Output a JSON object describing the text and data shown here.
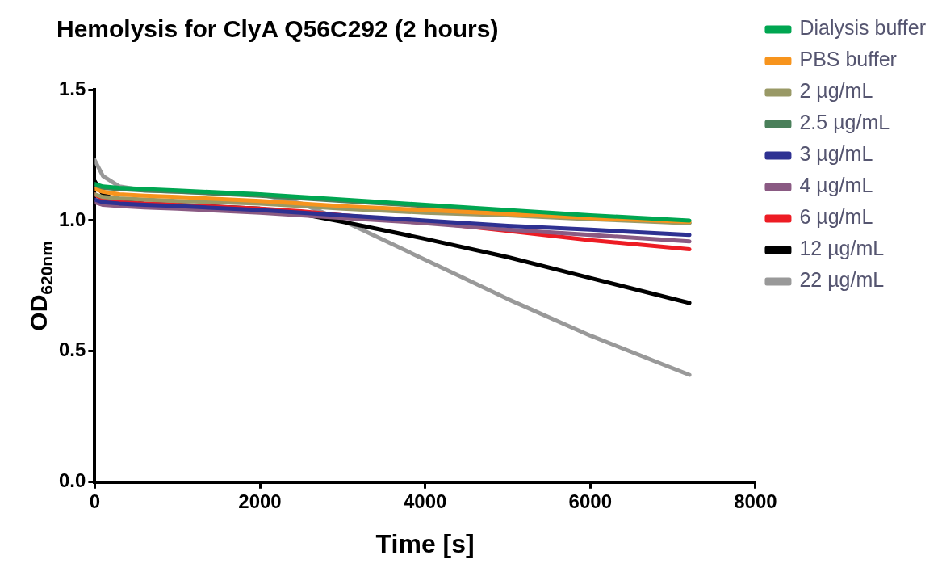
{
  "chart_data": {
    "type": "line",
    "title": "Hemolysis for ClyA Q56C292 (2 hours)",
    "xlabel": "Time [s]",
    "ylabel": "OD$_{620nm}$",
    "xlim": [
      0,
      8000
    ],
    "xticks": [
      0,
      2000,
      4000,
      6000,
      8000
    ],
    "ylim": [
      0,
      1.5
    ],
    "yticks": [
      {
        "value": 0,
        "label": "0.0"
      },
      {
        "value": 0.5,
        "label": "0.5"
      },
      {
        "value": 1,
        "label": "1.0"
      },
      {
        "value": 1.5,
        "label": "1.5"
      }
    ],
    "grid": false,
    "legend": "right",
    "marker": "none",
    "line_style": "solid",
    "x": [
      0,
      100,
      300,
      600,
      1000,
      2000,
      2500,
      3000,
      4000,
      5000,
      6000,
      7200
    ],
    "series": [
      {
        "name": "Dialysis buffer",
        "color": "#00a651",
        "values": [
          1.14,
          1.13,
          1.125,
          1.12,
          1.115,
          1.1,
          1.09,
          1.08,
          1.06,
          1.04,
          1.02,
          1.0
        ]
      },
      {
        "name": "PBS buffer",
        "color": "#f7941d",
        "values": [
          1.12,
          1.11,
          1.1,
          1.095,
          1.09,
          1.075,
          1.065,
          1.055,
          1.04,
          1.025,
          1.01,
          0.995
        ]
      },
      {
        "name": "2 µg/mL",
        "color": "#999966",
        "values": [
          1.1,
          1.09,
          1.085,
          1.08,
          1.075,
          1.065,
          1.055,
          1.045,
          1.03,
          1.02,
          1.005,
          0.99
        ]
      },
      {
        "name": "2.5 µg/mL",
        "color": "#4a7f5a",
        "values": [
          1.13,
          1.125,
          1.12,
          1.115,
          1.11,
          1.095,
          1.085,
          1.075,
          1.055,
          1.035,
          1.015,
          0.99
        ]
      },
      {
        "name": "3 µg/mL",
        "color": "#2e3192",
        "values": [
          1.08,
          1.07,
          1.065,
          1.06,
          1.055,
          1.04,
          1.03,
          1.02,
          1.0,
          0.98,
          0.965,
          0.945
        ]
      },
      {
        "name": "4 µg/mL",
        "color": "#8a5a83",
        "values": [
          1.07,
          1.06,
          1.055,
          1.05,
          1.045,
          1.03,
          1.02,
          1.01,
          0.99,
          0.965,
          0.945,
          0.92
        ]
      },
      {
        "name": "6 µg/mL",
        "color": "#ed1c24",
        "values": [
          1.1,
          1.08,
          1.07,
          1.065,
          1.06,
          1.045,
          1.035,
          1.02,
          0.995,
          0.96,
          0.925,
          0.89
        ]
      },
      {
        "name": "12 µg/mL",
        "color": "#000000",
        "values": [
          1.15,
          1.1,
          1.075,
          1.065,
          1.06,
          1.045,
          1.025,
          0.995,
          0.93,
          0.86,
          0.78,
          0.685
        ]
      },
      {
        "name": "22 µg/mL",
        "color": "#999999",
        "values": [
          1.23,
          1.17,
          1.13,
          1.115,
          1.11,
          1.1,
          1.065,
          1.0,
          0.85,
          0.7,
          0.56,
          0.41
        ]
      }
    ]
  }
}
